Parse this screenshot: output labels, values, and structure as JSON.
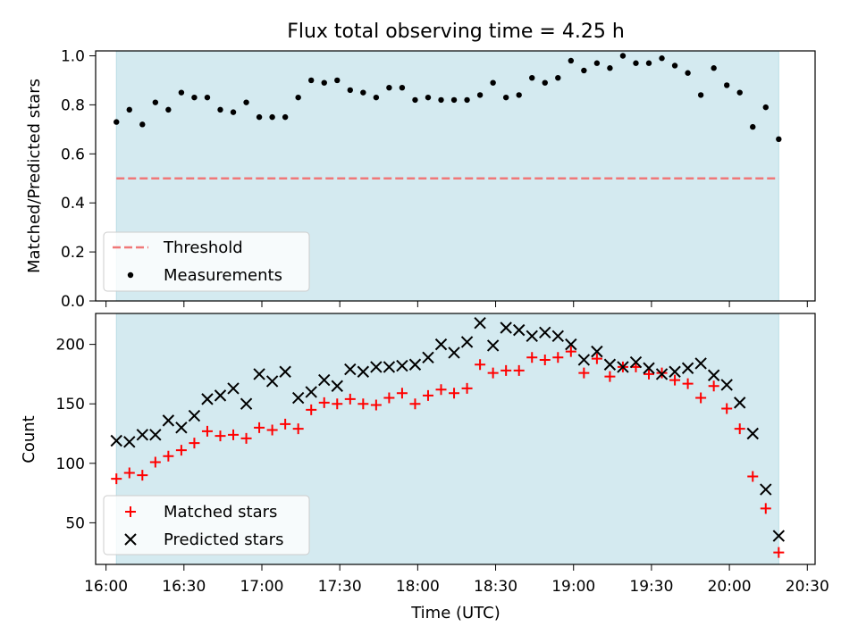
{
  "figure": {
    "title": "Flux total observing time = 4.25 h"
  },
  "colors": {
    "shade": "#d4eaf0",
    "threshold": "#f07878",
    "matched": "#ff0000",
    "predicted": "#000000"
  },
  "chart_data": [
    {
      "type": "scatter",
      "title": "Flux total observing time = 4.25 h",
      "xlabel": "",
      "ylabel": "Matched/Predicted stars",
      "xlim": [
        "15:56",
        "20:33"
      ],
      "ylim": [
        0.0,
        1.02
      ],
      "yticks": [
        "0.0",
        "0.2",
        "0.4",
        "0.6",
        "0.8",
        "1.0"
      ],
      "shaded_span": [
        "16:04",
        "20:19"
      ],
      "threshold": {
        "name": "Threshold",
        "y": 0.5,
        "style": "dashed"
      },
      "legend": [
        "Threshold",
        "Measurements"
      ],
      "legend_position": "lower left",
      "series": [
        {
          "name": "Measurements",
          "x": [
            "16:04",
            "16:09",
            "16:14",
            "16:19",
            "16:24",
            "16:29",
            "16:34",
            "16:39",
            "16:44",
            "16:49",
            "16:54",
            "16:59",
            "17:04",
            "17:09",
            "17:14",
            "17:19",
            "17:24",
            "17:29",
            "17:34",
            "17:39",
            "17:44",
            "17:49",
            "17:54",
            "17:59",
            "18:04",
            "18:09",
            "18:14",
            "18:19",
            "18:24",
            "18:29",
            "18:34",
            "18:39",
            "18:44",
            "18:49",
            "18:54",
            "18:59",
            "19:04",
            "19:09",
            "19:14",
            "19:19",
            "19:24",
            "19:29",
            "19:34",
            "19:39",
            "19:44",
            "19:49",
            "19:54",
            "19:59",
            "20:04",
            "20:09",
            "20:14",
            "20:19"
          ],
          "y": [
            0.73,
            0.78,
            0.72,
            0.81,
            0.78,
            0.85,
            0.83,
            0.83,
            0.78,
            0.77,
            0.81,
            0.75,
            0.75,
            0.75,
            0.83,
            0.9,
            0.89,
            0.9,
            0.86,
            0.85,
            0.83,
            0.87,
            0.87,
            0.82,
            0.83,
            0.82,
            0.82,
            0.82,
            0.84,
            0.89,
            0.83,
            0.84,
            0.91,
            0.89,
            0.91,
            0.98,
            0.94,
            0.97,
            0.95,
            1.0,
            0.97,
            0.97,
            0.99,
            0.96,
            0.93,
            0.84,
            0.95,
            0.88,
            0.85,
            0.71,
            0.79,
            0.66
          ]
        }
      ]
    },
    {
      "type": "scatter",
      "title": "",
      "xlabel": "Time (UTC)",
      "ylabel": "Count",
      "xlim": [
        "15:56",
        "20:33"
      ],
      "ylim": [
        15,
        226
      ],
      "xticks": [
        "16:00",
        "16:30",
        "17:00",
        "17:30",
        "18:00",
        "18:30",
        "19:00",
        "19:30",
        "20:00",
        "20:30"
      ],
      "yticks": [
        "50",
        "100",
        "150",
        "200"
      ],
      "shaded_span": [
        "16:04",
        "20:19"
      ],
      "legend": [
        "Matched stars",
        "Predicted stars"
      ],
      "legend_position": "lower left",
      "x": [
        "16:04",
        "16:09",
        "16:14",
        "16:19",
        "16:24",
        "16:29",
        "16:34",
        "16:39",
        "16:44",
        "16:49",
        "16:54",
        "16:59",
        "17:04",
        "17:09",
        "17:14",
        "17:19",
        "17:24",
        "17:29",
        "17:34",
        "17:39",
        "17:44",
        "17:49",
        "17:54",
        "17:59",
        "18:04",
        "18:09",
        "18:14",
        "18:19",
        "18:24",
        "18:29",
        "18:34",
        "18:39",
        "18:44",
        "18:49",
        "18:54",
        "18:59",
        "19:04",
        "19:09",
        "19:14",
        "19:19",
        "19:24",
        "19:29",
        "19:34",
        "19:39",
        "19:44",
        "19:49",
        "19:54",
        "19:59",
        "20:04",
        "20:09",
        "20:14",
        "20:19"
      ],
      "series": [
        {
          "name": "Matched stars",
          "marker": "+",
          "values": [
            87,
            92,
            90,
            101,
            106,
            111,
            117,
            127,
            123,
            124,
            121,
            130,
            128,
            133,
            129,
            145,
            151,
            150,
            154,
            150,
            149,
            155,
            159,
            150,
            157,
            162,
            159,
            163,
            183,
            176,
            178,
            178,
            189,
            187,
            189,
            194,
            176,
            188,
            173,
            181,
            181,
            175,
            176,
            170,
            167,
            155,
            165,
            146,
            129,
            89,
            62,
            25
          ]
        },
        {
          "name": "Predicted stars",
          "marker": "x",
          "values": [
            119,
            118,
            124,
            124,
            136,
            130,
            140,
            154,
            157,
            163,
            150,
            175,
            169,
            177,
            155,
            160,
            170,
            165,
            179,
            177,
            181,
            181,
            182,
            183,
            189,
            200,
            193,
            202,
            218,
            199,
            214,
            212,
            207,
            210,
            207,
            200,
            187,
            194,
            183,
            181,
            185,
            180,
            175,
            177,
            180,
            184,
            174,
            166,
            151,
            125,
            78,
            39
          ]
        }
      ]
    }
  ]
}
